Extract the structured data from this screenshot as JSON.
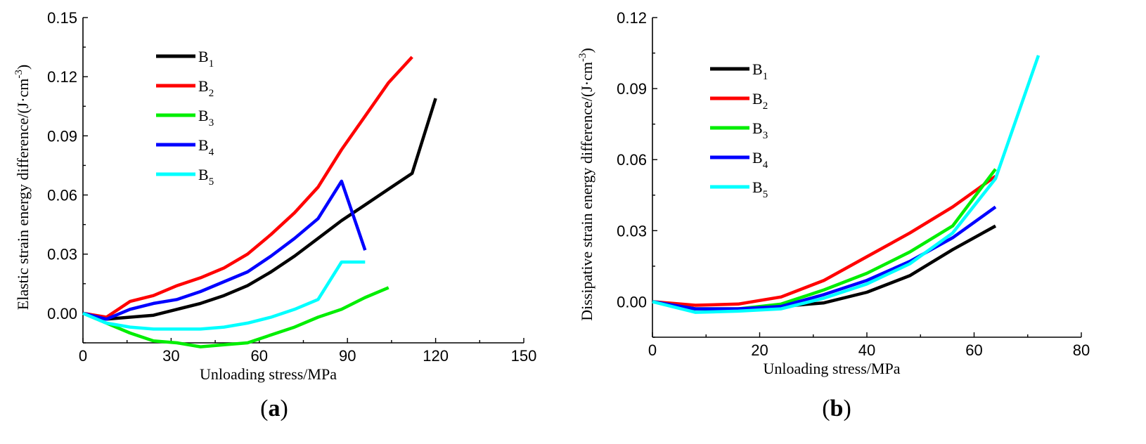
{
  "chart_data": [
    {
      "type": "line",
      "panel_label": "(a)",
      "panel_letter": "a",
      "xlabel": "Unloading stress/MPa",
      "ylabel": "Elastic strain energy difference/(J·cm",
      "ylabel_sup": "-3",
      "ylabel_close": ")",
      "xlim": [
        0,
        150
      ],
      "ylim": [
        -0.015,
        0.15
      ],
      "xticks": [
        0,
        30,
        60,
        90,
        120,
        150
      ],
      "xtick_labels": [
        "0",
        "30",
        "60",
        "90",
        "120",
        "150"
      ],
      "yticks": [
        0.0,
        0.03,
        0.06,
        0.09,
        0.12,
        0.15
      ],
      "ytick_labels": [
        "0.00",
        "0.03",
        "0.06",
        "0.09",
        "0.12",
        "0.15"
      ],
      "legend_position": "upper-left",
      "series": [
        {
          "name": "B",
          "sub": "1",
          "color": "#000000",
          "x": [
            0,
            8,
            16,
            24,
            32,
            40,
            48,
            56,
            64,
            72,
            80,
            88,
            96,
            104,
            112,
            120
          ],
          "y": [
            0.0,
            -0.003,
            -0.002,
            -0.001,
            0.002,
            0.005,
            0.009,
            0.014,
            0.021,
            0.029,
            0.038,
            0.047,
            0.055,
            0.063,
            0.071,
            0.109
          ]
        },
        {
          "name": "B",
          "sub": "2",
          "color": "#ff0000",
          "x": [
            0,
            8,
            16,
            24,
            32,
            40,
            48,
            56,
            64,
            72,
            80,
            88,
            96,
            104,
            112
          ],
          "y": [
            0.0,
            -0.002,
            0.006,
            0.009,
            0.014,
            0.018,
            0.023,
            0.03,
            0.04,
            0.051,
            0.064,
            0.083,
            0.1,
            0.117,
            0.13
          ]
        },
        {
          "name": "B",
          "sub": "3",
          "color": "#00ee00",
          "x": [
            0,
            8,
            16,
            24,
            32,
            40,
            48,
            56,
            64,
            72,
            80,
            88,
            96,
            104
          ],
          "y": [
            0.0,
            -0.005,
            -0.01,
            -0.014,
            -0.015,
            -0.017,
            -0.016,
            -0.015,
            -0.011,
            -0.007,
            -0.002,
            0.002,
            0.008,
            0.013
          ]
        },
        {
          "name": "B",
          "sub": "4",
          "color": "#0000ff",
          "x": [
            0,
            8,
            16,
            24,
            32,
            40,
            48,
            56,
            64,
            72,
            80,
            88,
            96
          ],
          "y": [
            0.0,
            -0.003,
            0.002,
            0.005,
            0.007,
            0.011,
            0.016,
            0.021,
            0.029,
            0.038,
            0.048,
            0.067,
            0.032
          ]
        },
        {
          "name": "B",
          "sub": "5",
          "color": "#00ffff",
          "x": [
            0,
            8,
            16,
            24,
            32,
            40,
            48,
            56,
            64,
            72,
            80,
            88,
            96
          ],
          "y": [
            0.0,
            -0.005,
            -0.007,
            -0.008,
            -0.008,
            -0.008,
            -0.007,
            -0.005,
            -0.002,
            0.002,
            0.007,
            0.026,
            0.026
          ]
        }
      ]
    },
    {
      "type": "line",
      "panel_label": "(b)",
      "panel_letter": "b",
      "xlabel": "Unloading stress/MPa",
      "ylabel": "Dissipative strain energy difference/(J·cm",
      "ylabel_sup": "-3",
      "ylabel_close": ")",
      "xlim": [
        0,
        80
      ],
      "ylim": [
        -0.015,
        0.12
      ],
      "xticks": [
        0,
        20,
        40,
        60,
        80
      ],
      "xtick_labels": [
        "0",
        "20",
        "40",
        "60",
        "80"
      ],
      "yticks": [
        0.0,
        0.03,
        0.06,
        0.09,
        0.12
      ],
      "ytick_labels": [
        "0.00",
        "0.03",
        "0.06",
        "0.09",
        "0.12"
      ],
      "legend_position": "upper-left",
      "series": [
        {
          "name": "B",
          "sub": "1",
          "color": "#000000",
          "x": [
            0,
            8,
            16,
            24,
            32,
            40,
            48,
            56,
            64
          ],
          "y": [
            0.0,
            -0.003,
            -0.003,
            -0.002,
            -0.0005,
            0.004,
            0.011,
            0.022,
            0.032
          ]
        },
        {
          "name": "B",
          "sub": "2",
          "color": "#ff0000",
          "x": [
            0,
            8,
            16,
            24,
            32,
            40,
            48,
            56,
            64
          ],
          "y": [
            0.0,
            -0.0015,
            -0.001,
            0.002,
            0.009,
            0.019,
            0.029,
            0.04,
            0.053
          ]
        },
        {
          "name": "B",
          "sub": "3",
          "color": "#00ee00",
          "x": [
            0,
            8,
            16,
            24,
            32,
            40,
            48,
            56,
            64
          ],
          "y": [
            0.0,
            -0.003,
            -0.003,
            -0.001,
            0.005,
            0.012,
            0.021,
            0.032,
            0.056
          ]
        },
        {
          "name": "B",
          "sub": "4",
          "color": "#0000ff",
          "x": [
            0,
            8,
            16,
            24,
            32,
            40,
            48,
            56,
            64
          ],
          "y": [
            0.0,
            -0.003,
            -0.003,
            -0.002,
            0.003,
            0.009,
            0.017,
            0.027,
            0.04
          ]
        },
        {
          "name": "B",
          "sub": "5",
          "color": "#00ffff",
          "x": [
            0,
            8,
            16,
            24,
            32,
            40,
            48,
            56,
            64,
            72
          ],
          "y": [
            0.0,
            -0.0045,
            -0.004,
            -0.003,
            0.0015,
            0.0075,
            0.016,
            0.029,
            0.052,
            0.104
          ]
        }
      ]
    }
  ]
}
